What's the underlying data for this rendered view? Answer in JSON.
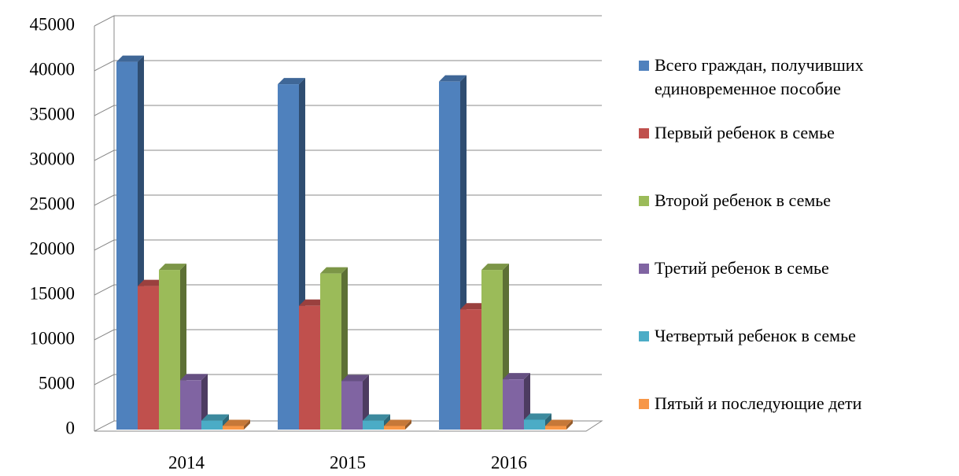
{
  "chart_data": {
    "type": "bar",
    "categories": [
      "2014",
      "2015",
      "2016"
    ],
    "series": [
      {
        "name": "Всего граждан, получивших единовременное пособие",
        "color": "#4f81bd",
        "values": [
          41000,
          38500,
          38800
        ]
      },
      {
        "name": "Первый ребенок в  семье",
        "color": "#c0504d",
        "values": [
          16000,
          13800,
          13400
        ]
      },
      {
        "name": "Второй ребенок в семье",
        "color": "#9bbb59",
        "values": [
          17800,
          17400,
          17800
        ]
      },
      {
        "name": "Третий ребенок в семье",
        "color": "#8064a2",
        "values": [
          5500,
          5400,
          5600
        ]
      },
      {
        "name": "Четвертый ребенок в семье",
        "color": "#4bacc6",
        "values": [
          1000,
          1000,
          1100
        ]
      },
      {
        "name": "Пятый и последующие дети",
        "color": "#f79646",
        "values": [
          400,
          400,
          400
        ]
      }
    ],
    "ylim": [
      0,
      45000
    ],
    "yticks": [
      0,
      5000,
      10000,
      15000,
      20000,
      25000,
      30000,
      35000,
      40000,
      45000
    ],
    "grid": true,
    "legend": "right"
  }
}
